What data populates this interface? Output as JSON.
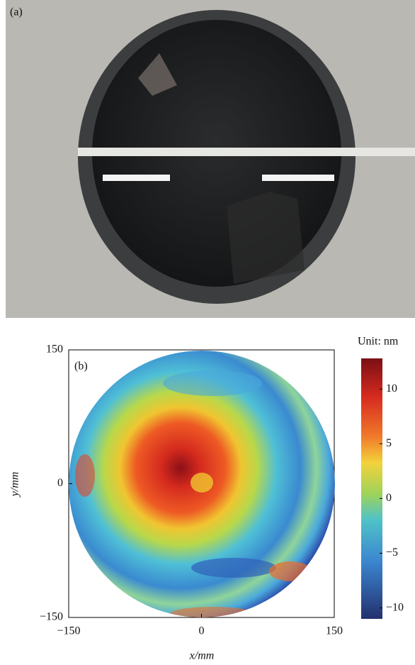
{
  "photo_label": "(a)",
  "chart_data": {
    "type": "heatmap",
    "panel_label": "(b)",
    "xlabel": "x/mm",
    "ylabel": "y/mm",
    "xlim": [
      -150,
      150
    ],
    "ylim": [
      -150,
      150
    ],
    "xticks": [
      {
        "value": -150,
        "label": "−150"
      },
      0,
      150
    ],
    "yticks": [
      {
        "value": -150,
        "label": "−150"
      },
      0,
      150
    ],
    "colorbar": {
      "title": "Unit: nm",
      "lim": [
        -11,
        12.8
      ],
      "ticks": [
        {
          "value": -10,
          "label": "−10"
        },
        {
          "value": -5,
          "label": "−5"
        },
        0,
        5,
        10
      ]
    }
  }
}
